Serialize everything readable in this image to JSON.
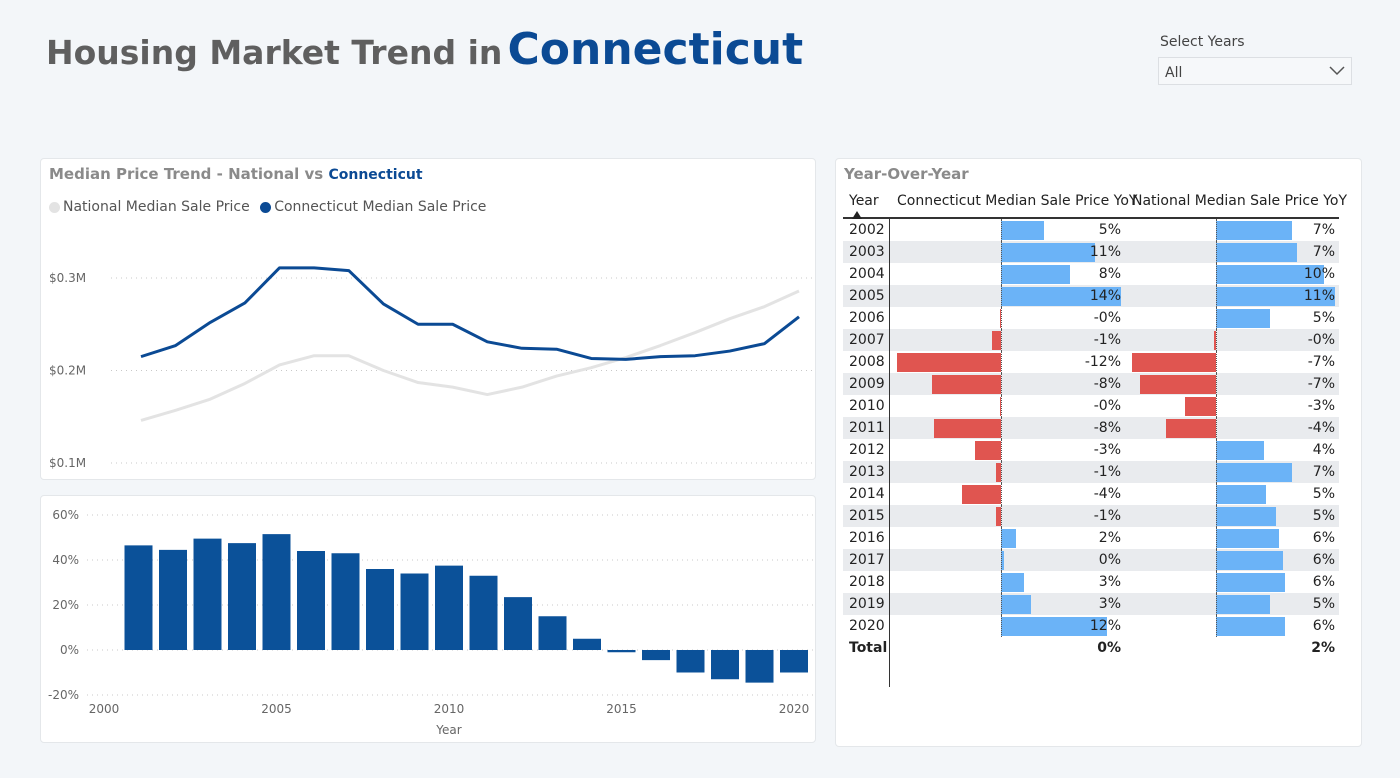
{
  "header": {
    "title_prefix": "Housing Market Trend in",
    "title_state": "Connecticut"
  },
  "slicer": {
    "label": "Select Years",
    "value": "All"
  },
  "colors": {
    "national": "#e3e3e3",
    "connecticut": "#0b4a94",
    "bar": "#0b5199",
    "positive": "#6bb3f7",
    "negative": "#e05550"
  },
  "line_card": {
    "title_prefix": "Median Price Trend - National vs",
    "title_state": "Connecticut",
    "legend": [
      {
        "label": "National Median Sale Price",
        "color": "#e3e3e3"
      },
      {
        "label": "Connecticut Median Sale Price",
        "color": "#0b4a94"
      }
    ]
  },
  "yoy_card": {
    "title": "Year-Over-Year",
    "columns": [
      "Year",
      "Connecticut Median Sale Price YoY",
      "National Median Sale Price YoY"
    ],
    "total_label": "Total"
  },
  "chart_data": [
    {
      "type": "line",
      "x": [
        2001,
        2002,
        2003,
        2004,
        2005,
        2006,
        2007,
        2008,
        2009,
        2010,
        2011,
        2012,
        2013,
        2014,
        2015,
        2016,
        2017,
        2018,
        2019,
        2020
      ],
      "series": [
        {
          "name": "National Median Sale Price",
          "values": [
            146,
            157,
            169,
            186,
            206,
            216,
            216,
            200,
            187,
            182,
            174,
            182,
            194,
            203,
            214,
            227,
            241,
            256,
            269,
            286
          ]
        },
        {
          "name": "Connecticut Median Sale Price",
          "values": [
            215,
            227,
            252,
            273,
            311,
            311,
            308,
            272,
            250,
            250,
            231,
            224,
            223,
            213,
            212,
            215,
            216,
            221,
            229,
            258
          ]
        }
      ],
      "ylabel_ticks": [
        "$0.1M",
        "$0.2M",
        "$0.3M"
      ],
      "y_tick_values": [
        100,
        200,
        300
      ],
      "ylim": [
        100,
        300
      ],
      "grid": true
    },
    {
      "type": "bar",
      "categories": [
        2001,
        2002,
        2003,
        2004,
        2005,
        2006,
        2007,
        2008,
        2009,
        2010,
        2011,
        2012,
        2013,
        2014,
        2015,
        2016,
        2017,
        2018,
        2019,
        2020
      ],
      "values": [
        46.5,
        44.5,
        49.5,
        47.5,
        51.5,
        44,
        43,
        36,
        34,
        37.5,
        33,
        23.5,
        15,
        5,
        -1,
        -4.5,
        -10,
        -13,
        -14.5,
        -10
      ],
      "xlabel": "Year",
      "x_ticks": [
        2000,
        2005,
        2010,
        2015,
        2020
      ],
      "y_ticks": [
        "-20%",
        "0%",
        "20%",
        "40%",
        "60%"
      ],
      "y_tick_values": [
        -20,
        0,
        20,
        40,
        60
      ],
      "ylim": [
        -20,
        60
      ],
      "grid": true
    },
    {
      "type": "table",
      "columns": [
        "Year",
        "Connecticut Median Sale Price YoY",
        "National Median Sale Price YoY"
      ],
      "rows": [
        {
          "year": "2002",
          "ct": 5,
          "ct_label": "5%",
          "nat": 7,
          "nat_label": "7%"
        },
        {
          "year": "2003",
          "ct": 11,
          "ct_label": "11%",
          "nat": 7.5,
          "nat_label": "7%"
        },
        {
          "year": "2004",
          "ct": 8,
          "ct_label": "8%",
          "nat": 10,
          "nat_label": "10%"
        },
        {
          "year": "2005",
          "ct": 14,
          "ct_label": "14%",
          "nat": 11,
          "nat_label": "11%"
        },
        {
          "year": "2006",
          "ct": -0.1,
          "ct_label": "-0%",
          "nat": 5,
          "nat_label": "5%"
        },
        {
          "year": "2007",
          "ct": -1,
          "ct_label": "-1%",
          "nat": -0.2,
          "nat_label": "-0%"
        },
        {
          "year": "2008",
          "ct": -12,
          "ct_label": "-12%",
          "nat": -7.4,
          "nat_label": "-7%"
        },
        {
          "year": "2009",
          "ct": -8,
          "ct_label": "-8%",
          "nat": -6.7,
          "nat_label": "-7%"
        },
        {
          "year": "2010",
          "ct": -0.1,
          "ct_label": "-0%",
          "nat": -2.7,
          "nat_label": "-3%"
        },
        {
          "year": "2011",
          "ct": -7.7,
          "ct_label": "-8%",
          "nat": -4.4,
          "nat_label": "-4%"
        },
        {
          "year": "2012",
          "ct": -3,
          "ct_label": "-3%",
          "nat": 4.4,
          "nat_label": "4%"
        },
        {
          "year": "2013",
          "ct": -0.6,
          "ct_label": "-1%",
          "nat": 7,
          "nat_label": "7%"
        },
        {
          "year": "2014",
          "ct": -4.5,
          "ct_label": "-4%",
          "nat": 4.6,
          "nat_label": "5%"
        },
        {
          "year": "2015",
          "ct": -0.6,
          "ct_label": "-1%",
          "nat": 5.5,
          "nat_label": "5%"
        },
        {
          "year": "2016",
          "ct": 1.7,
          "ct_label": "2%",
          "nat": 5.8,
          "nat_label": "6%"
        },
        {
          "year": "2017",
          "ct": 0.3,
          "ct_label": "0%",
          "nat": 6.2,
          "nat_label": "6%"
        },
        {
          "year": "2018",
          "ct": 2.7,
          "ct_label": "3%",
          "nat": 6.4,
          "nat_label": "6%"
        },
        {
          "year": "2019",
          "ct": 3.5,
          "ct_label": "3%",
          "nat": 5,
          "nat_label": "5%"
        },
        {
          "year": "2020",
          "ct": 12.4,
          "ct_label": "12%",
          "nat": 6.4,
          "nat_label": "6%"
        }
      ],
      "total": {
        "ct_label": "0%",
        "nat_label": "2%"
      },
      "ct_scale": [
        -12,
        14
      ],
      "nat_scale": [
        -7.4,
        11
      ]
    }
  ]
}
